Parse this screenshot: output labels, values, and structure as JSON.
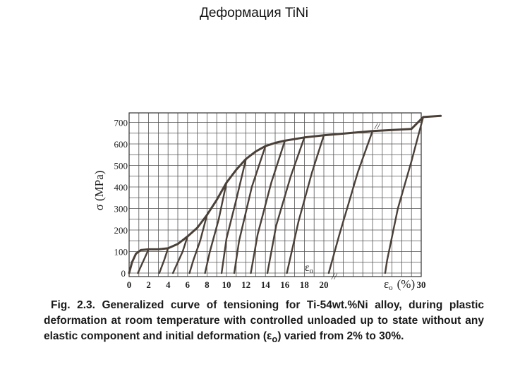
{
  "slide": {
    "title": "Деформация TiNi"
  },
  "caption": {
    "text_before": "Fig. 2.3. Generalized curve of tensioning for Ti-54wt.%Ni alloy, during plastic deformation at room temperature with controlled unloaded up to state without any elastic component  and initial deformation (ε",
    "subscript": "o",
    "text_after": ") varied from 2% to 30%."
  },
  "chart_data": {
    "type": "line",
    "title": "",
    "ylabel": "σ (MPa)",
    "xlabel": "εo (%)",
    "x_axis_symbol": "ε",
    "x_axis_subscript": "o",
    "x_axis_unit": "(%)",
    "inner_label_symbol": "ε",
    "inner_label_subscript": "o",
    "break_marks": "//",
    "xlim": [
      0,
      30
    ],
    "ylim": [
      0,
      700
    ],
    "x_ticks": [
      "0",
      "2",
      "4",
      "6",
      "8",
      "10",
      "12",
      "14",
      "16",
      "18",
      "20",
      "30"
    ],
    "y_ticks": [
      "0",
      "100",
      "200",
      "300",
      "400",
      "500",
      "600",
      "700"
    ],
    "grid": true,
    "line_color": "#4a4038",
    "series": [
      {
        "role": "loading curve",
        "points": [
          [
            0,
            0
          ],
          [
            0.3,
            50
          ],
          [
            0.7,
            90
          ],
          [
            1.2,
            107
          ],
          [
            2,
            110
          ],
          [
            3,
            110
          ],
          [
            4,
            115
          ],
          [
            5,
            135
          ],
          [
            6,
            170
          ],
          [
            7,
            210
          ],
          [
            8,
            270
          ],
          [
            9,
            340
          ],
          [
            10,
            420
          ],
          [
            11,
            480
          ],
          [
            12,
            530
          ],
          [
            13,
            565
          ],
          [
            14,
            590
          ],
          [
            15,
            605
          ],
          [
            16,
            615
          ],
          [
            18,
            630
          ],
          [
            20,
            640
          ],
          [
            22,
            648
          ],
          [
            25,
            660
          ],
          [
            27,
            665
          ],
          [
            29,
            670
          ],
          [
            30.2,
            725
          ],
          [
            32,
            730
          ]
        ]
      },
      {
        "role": "unloading curves",
        "paths": [
          {
            "eps0": 2,
            "points": [
              [
                2,
                110
              ],
              [
                1.5,
                60
              ],
              [
                0.9,
                0
              ]
            ]
          },
          {
            "eps0": 4,
            "points": [
              [
                4,
                115
              ],
              [
                3.6,
                60
              ],
              [
                3.1,
                0
              ]
            ]
          },
          {
            "eps0": 6,
            "points": [
              [
                6,
                170
              ],
              [
                5.5,
                100
              ],
              [
                4.9,
                40
              ],
              [
                4.5,
                0
              ]
            ]
          },
          {
            "eps0": 8,
            "points": [
              [
                8,
                270
              ],
              [
                7.3,
                150
              ],
              [
                6.6,
                60
              ],
              [
                6.2,
                0
              ]
            ]
          },
          {
            "eps0": 10,
            "points": [
              [
                10,
                420
              ],
              [
                9.2,
                250
              ],
              [
                8.3,
                100
              ],
              [
                7.8,
                0
              ]
            ]
          },
          {
            "eps0": 12,
            "points": [
              [
                12,
                530
              ],
              [
                11,
                340
              ],
              [
                10,
                160
              ],
              [
                9.5,
                0
              ]
            ]
          },
          {
            "eps0": 14,
            "points": [
              [
                14,
                590
              ],
              [
                12.6,
                400
              ],
              [
                11.3,
                150
              ],
              [
                10.8,
                0
              ]
            ]
          },
          {
            "eps0": 16,
            "points": [
              [
                16,
                615
              ],
              [
                14.6,
                420
              ],
              [
                13.2,
                180
              ],
              [
                12.5,
                0
              ]
            ]
          },
          {
            "eps0": 18,
            "points": [
              [
                18,
                630
              ],
              [
                16.6,
                450
              ],
              [
                15.1,
                220
              ],
              [
                14.2,
                0
              ]
            ]
          },
          {
            "eps0": 20,
            "points": [
              [
                20,
                640
              ],
              [
                18.8,
                470
              ],
              [
                17.4,
                240
              ],
              [
                16.2,
                0
              ]
            ]
          },
          {
            "eps0": 25,
            "points": [
              [
                25,
                660
              ],
              [
                23.5,
                470
              ],
              [
                21.6,
                180
              ],
              [
                20.5,
                0
              ]
            ]
          },
          {
            "eps0": 30,
            "points": [
              [
                30.2,
                725
              ],
              [
                29,
                520
              ],
              [
                27.6,
                300
              ],
              [
                26.5,
                60
              ],
              [
                26.3,
                0
              ]
            ]
          }
        ]
      }
    ]
  }
}
